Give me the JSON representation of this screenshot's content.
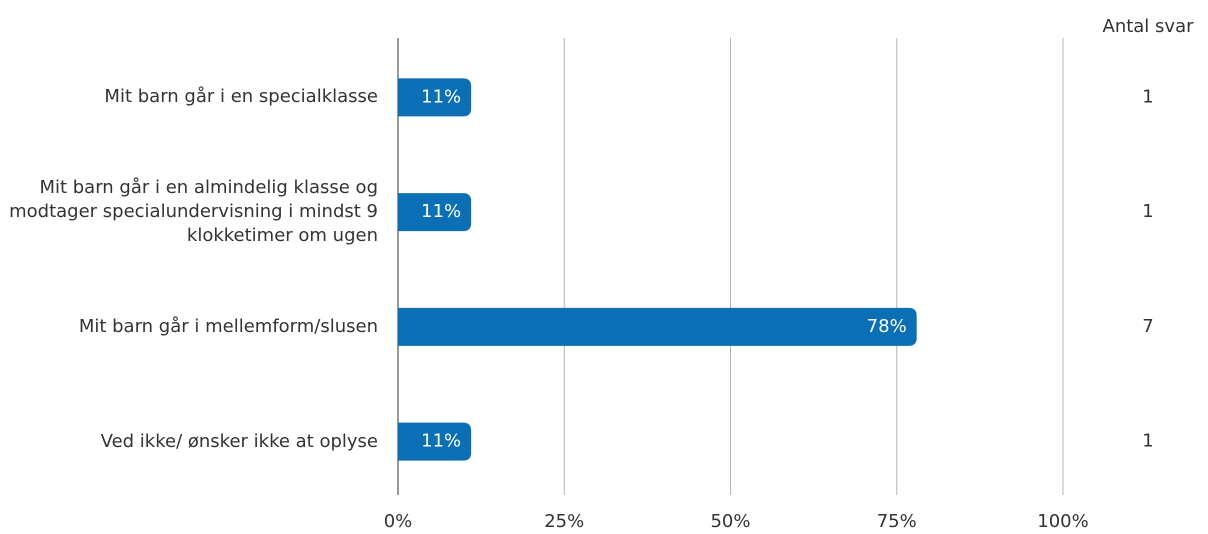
{
  "chart_data": {
    "type": "bar",
    "orientation": "horizontal",
    "categories": [
      "Mit barn går i en specialklasse",
      "Mit barn går i en almindelig klasse og modtager specialundervisning i mindst 9 klokketimer om ugen",
      "Mit barn går i mellemform/slusen",
      "Ved ikke/ ønsker ikke at oplyse"
    ],
    "values": [
      11,
      11,
      78,
      11
    ],
    "value_labels": [
      "11%",
      "11%",
      "78%",
      "11%"
    ],
    "color": "#0b6fb5",
    "xlim": [
      0,
      100
    ],
    "xticks": [
      {
        "value": 0,
        "label": "0%"
      },
      {
        "value": 25,
        "label": "25%"
      },
      {
        "value": 50,
        "label": "50%"
      },
      {
        "value": 75,
        "label": "75%"
      },
      {
        "value": 100,
        "label": "100%"
      }
    ],
    "grid": true,
    "count_title": "Antal svar",
    "counts": [
      1,
      1,
      7,
      1
    ]
  }
}
